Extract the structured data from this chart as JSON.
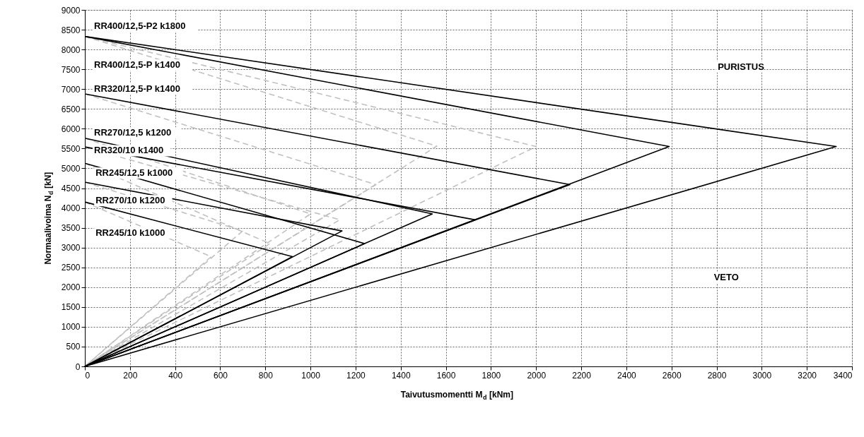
{
  "chart_data": {
    "type": "line",
    "xlabel": "Taivutusmomentti M$_{d}$ [kNm]",
    "ylabel": "Normaalivoima N$_{d}$ [kN]",
    "xlim": [
      0,
      3400
    ],
    "xticks": [
      0,
      200,
      400,
      600,
      800,
      1000,
      1200,
      1400,
      1600,
      1800,
      2000,
      2200,
      2400,
      2600,
      2800,
      3000,
      3200,
      3400
    ],
    "ylim": [
      0,
      9000
    ],
    "yticks": [
      0,
      500,
      1000,
      1500,
      2000,
      2500,
      3000,
      3500,
      4000,
      4500,
      5000,
      5500,
      6000,
      6500,
      7000,
      7500,
      8000,
      8500,
      9000
    ],
    "grid": true,
    "legend": false,
    "marker": "none",
    "series": [
      {
        "color": "#c0c0c0",
        "line_style": "dashed",
        "x": [
          0,
          2000,
          0
        ],
        "values": [
          8330,
          5550,
          0
        ]
      },
      {
        "color": "#c0c0c0",
        "line_style": "dashed",
        "x": [
          0,
          1560,
          0
        ],
        "values": [
          8330,
          5560,
          0
        ]
      },
      {
        "color": "#c0c0c0",
        "line_style": "dashed",
        "x": [
          0,
          1290,
          0
        ],
        "values": [
          6880,
          4590,
          0
        ]
      },
      {
        "color": "#c0c0c0",
        "line_style": "dashed",
        "x": [
          0,
          1000,
          0
        ],
        "values": [
          5760,
          3850,
          0
        ]
      },
      {
        "color": "#c0c0c0",
        "line_style": "dashed",
        "x": [
          0,
          1130,
          0
        ],
        "values": [
          5540,
          3700,
          0
        ]
      },
      {
        "color": "#c0c0c0",
        "line_style": "dashed",
        "x": [
          0,
          820,
          0
        ],
        "values": [
          5130,
          3100,
          0
        ]
      },
      {
        "color": "#c0c0c0",
        "line_style": "dashed",
        "x": [
          0,
          700,
          0
        ],
        "values": [
          4650,
          3420,
          0
        ]
      },
      {
        "color": "#c0c0c0",
        "line_style": "dashed",
        "x": [
          0,
          560,
          0
        ],
        "values": [
          4150,
          2770,
          0
        ]
      },
      {
        "color": "#000000",
        "line_style": "solid",
        "x": [
          0,
          3330,
          0
        ],
        "values": [
          8330,
          5550,
          0
        ]
      },
      {
        "color": "#000000",
        "line_style": "solid",
        "x": [
          0,
          2590,
          0
        ],
        "values": [
          8330,
          5550,
          0
        ]
      },
      {
        "color": "#000000",
        "line_style": "solid",
        "x": [
          0,
          2150,
          0
        ],
        "values": [
          6880,
          4590,
          0
        ]
      },
      {
        "color": "#000000",
        "line_style": "solid",
        "x": [
          0,
          1540,
          0
        ],
        "values": [
          5760,
          3850,
          0
        ]
      },
      {
        "color": "#000000",
        "line_style": "solid",
        "x": [
          0,
          1730,
          0
        ],
        "values": [
          5540,
          3700,
          0
        ]
      },
      {
        "color": "#000000",
        "line_style": "solid",
        "x": [
          0,
          1240,
          0
        ],
        "values": [
          5130,
          3100,
          0
        ]
      },
      {
        "color": "#000000",
        "line_style": "solid",
        "x": [
          0,
          1140,
          0
        ],
        "values": [
          4650,
          3420,
          0
        ]
      },
      {
        "color": "#000000",
        "line_style": "solid",
        "x": [
          0,
          920,
          0
        ],
        "values": [
          4150,
          2770,
          0
        ]
      }
    ],
    "annotations": [
      "RR400/12,5-P2 k1800",
      "RR400/12,5-P k1400",
      "RR320/12,5-P k1400",
      "RR270/12,5 k1200",
      "RR320/10 k1400",
      "RR245/12,5 k1000",
      "RR270/10 k1200",
      "RR245/10 k1000",
      "PURISTUS",
      "VETO"
    ]
  }
}
